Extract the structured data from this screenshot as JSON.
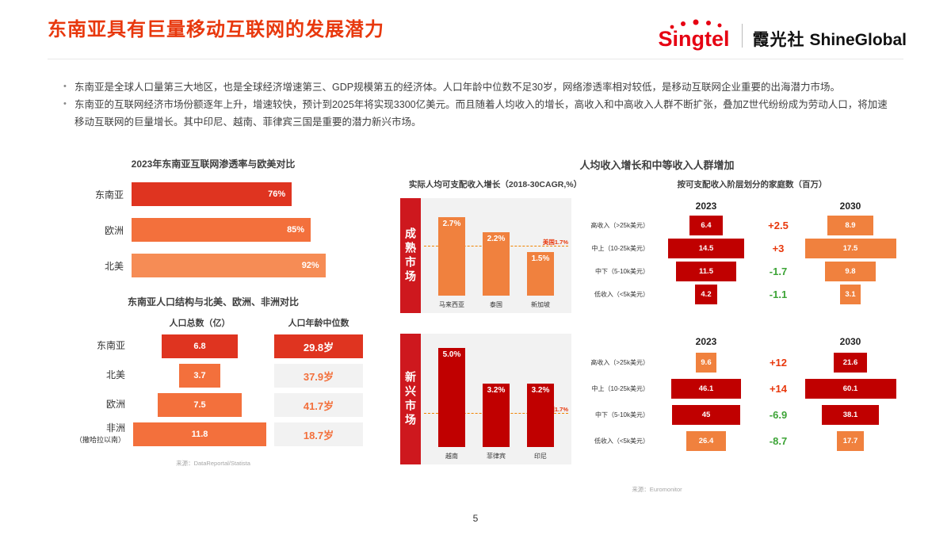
{
  "palette": {
    "title_red": "#E8380D",
    "red": "#C00000",
    "bright_red": "#DF3420",
    "orange": "#F0813E",
    "mid_orange": "#F3703C",
    "light_orange": "#F68C55",
    "positive": "#E8380D",
    "negative": "#3DA437",
    "panel_gray": "#F2F2F2",
    "strip_red": "#CE181E"
  },
  "header": {
    "title": "东南亚具有巨量移动互联网的发展潜力",
    "brand": "Singtel",
    "partner_cn": "霞光社",
    "partner_en": "ShineGlobal"
  },
  "bullets": [
    "东南亚是全球人口量第三大地区，也是全球经济增速第三、GDP规模第五的经济体。人口年龄中位数不足30岁，网络渗透率相对较低，是移动互联网企业重要的出海潜力市场。",
    "东南亚的互联网经济市场份额逐年上升，增速较快，预计到2025年将实现3300亿美元。而且随着人均收入的增长，高收入和中高收入人群不断扩张，叠加Z世代纷纷成为劳动人口，将加速移动互联网的巨量增长。其中印尼、越南、菲律宾三国是重要的潜力新兴市场。"
  ],
  "chart_data": [
    {
      "id": "penetration",
      "type": "bar",
      "title": "2023年东南亚互联网渗透率与欧美对比",
      "categories": [
        "东南亚",
        "欧洲",
        "北美"
      ],
      "values": [
        76,
        85,
        92
      ],
      "labels": [
        "76%",
        "85%",
        "92%"
      ],
      "bar_colors": [
        "bright_red",
        "mid_orange",
        "light_orange"
      ],
      "xlim": [
        0,
        100
      ]
    },
    {
      "id": "population",
      "type": "table",
      "title": "东南亚人口结构与北美、欧洲、非洲对比",
      "columns": [
        "人口总数（亿）",
        "人口年龄中位数"
      ],
      "rows": [
        {
          "label_lines": [
            "东南亚"
          ],
          "population": 6.8,
          "median_age": "29.8岁",
          "highlight": true
        },
        {
          "label_lines": [
            "北美"
          ],
          "population": 3.7,
          "median_age": "37.9岁",
          "highlight": false
        },
        {
          "label_lines": [
            "欧洲"
          ],
          "population": 7.5,
          "median_age": "41.7岁",
          "highlight": false
        },
        {
          "label_lines": [
            "非洲",
            "（撒哈拉以南）"
          ],
          "population": 11.8,
          "median_age": "18.7岁",
          "highlight": false
        }
      ],
      "source": "来源：DataReportal/Statista"
    },
    {
      "id": "income",
      "type": "bar+table",
      "title": "人均收入增长和中等收入人群增加",
      "left_subtitle": "实际人均可支配收入增长（2018-30CAGR,%）",
      "right_subtitle": "按可支配收入阶层划分的家庭数（百万）",
      "benchmark": {
        "label": "美国1.7%",
        "value": 1.7
      },
      "year_columns": [
        "2023",
        "2030"
      ],
      "markets": [
        {
          "name": "成熟市场",
          "cagr": {
            "categories": [
              "马来西亚",
              "泰国",
              "新加坡"
            ],
            "values": [
              2.7,
              2.2,
              1.5
            ],
            "labels": [
              "2.7%",
              "2.2%",
              "1.5%"
            ],
            "bar_color": "orange",
            "ymax": 3.2
          },
          "tiers": [
            {
              "label": "高收入（>25k美元）",
              "y2023": 6.4,
              "change": "+2.5",
              "trend": "positive",
              "y2030": 8.9,
              "color2023": "red",
              "color2030": "orange"
            },
            {
              "label": "中上（10-25k美元）",
              "y2023": 14.5,
              "change": "+3",
              "trend": "positive",
              "y2030": 17.5,
              "color2023": "red",
              "color2030": "orange"
            },
            {
              "label": "中下（5-10k美元）",
              "y2023": 11.5,
              "change": "-1.7",
              "trend": "negative",
              "y2030": 9.8,
              "color2023": "red",
              "color2030": "orange"
            },
            {
              "label": "低收入（<5k美元）",
              "y2023": 4.2,
              "change": "-1.1",
              "trend": "negative",
              "y2030": 3.1,
              "color2023": "red",
              "color2030": "orange"
            }
          ]
        },
        {
          "name": "新兴市场",
          "cagr": {
            "categories": [
              "越南",
              "菲律宾",
              "印尼"
            ],
            "values": [
              5.0,
              3.2,
              3.2
            ],
            "labels": [
              "5.0%",
              "3.2%",
              "3.2%"
            ],
            "bar_color": "red",
            "ymax": 5.5
          },
          "tiers": [
            {
              "label": "高收入（>25k美元）",
              "y2023": 9.6,
              "change": "+12",
              "trend": "positive",
              "y2030": 21.6,
              "color2023": "orange",
              "color2030": "red"
            },
            {
              "label": "中上（10-25k美元）",
              "y2023": 46.1,
              "change": "+14",
              "trend": "positive",
              "y2030": 60.1,
              "color2023": "red",
              "color2030": "red"
            },
            {
              "label": "中下（5-10k美元）",
              "y2023": 45,
              "change": "-6.9",
              "trend": "negative",
              "y2030": 38.1,
              "color2023": "red",
              "color2030": "red"
            },
            {
              "label": "低收入（<5k美元）",
              "y2023": 26.4,
              "change": "-8.7",
              "trend": "negative",
              "y2030": 17.7,
              "color2023": "orange",
              "color2030": "orange"
            }
          ]
        }
      ],
      "source": "来源：Euromonitor"
    }
  ],
  "footer": {
    "page_number": "5"
  }
}
